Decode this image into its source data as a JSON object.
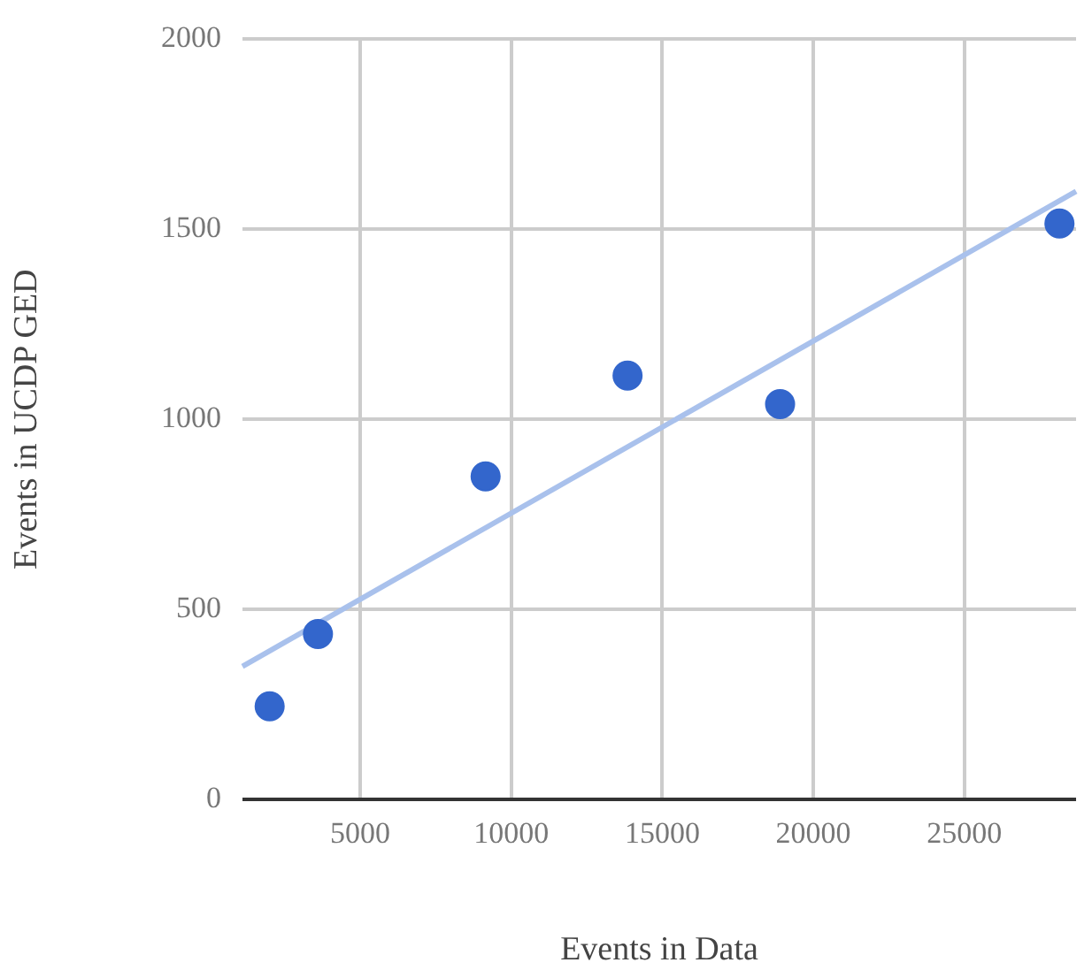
{
  "chart_data": {
    "type": "scatter",
    "xlabel": "Events in Data",
    "ylabel": "Events in UCDP GED",
    "xlim": [
      1100,
      28700
    ],
    "xticks": [
      5000,
      10000,
      15000,
      20000,
      25000
    ],
    "ylim": [
      0,
      2000
    ],
    "yticks": [
      0,
      500,
      1000,
      1500,
      2000
    ],
    "grid": true,
    "legend": false,
    "marker": "circle",
    "series": [
      {
        "color": "#3366cc",
        "x": [
          2000,
          3600,
          9150,
          13850,
          18900,
          28150
        ],
        "values": [
          245,
          435,
          850,
          1115,
          1040,
          1515
        ]
      },
      {
        "type": "line",
        "color": "#a9c1ec",
        "x": [
          1100,
          28700
        ],
        "values": [
          350,
          1600
        ],
        "marker": "none"
      }
    ]
  }
}
